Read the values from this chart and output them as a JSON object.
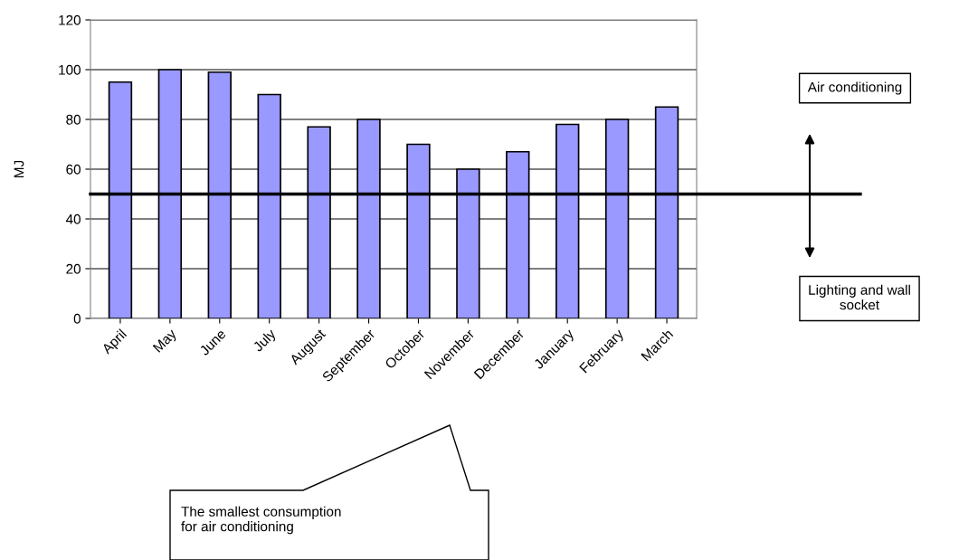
{
  "chart_data": {
    "type": "bar",
    "ylabel": "MJ",
    "categories": [
      "April",
      "May",
      "June",
      "July",
      "August",
      "September",
      "October",
      "November",
      "December",
      "January",
      "February",
      "March"
    ],
    "values": [
      95,
      100,
      99,
      90,
      77,
      80,
      70,
      60,
      67,
      78,
      80,
      85
    ],
    "color": "#9999ff",
    "ylim": [
      0,
      120
    ],
    "yticks": [
      0,
      20,
      40,
      60,
      80,
      100,
      120
    ],
    "grid": "y",
    "ref_lines": [
      {
        "axis": "y",
        "value": 50,
        "color": "#000000",
        "line_style": "solid"
      }
    ],
    "annotations": [
      "Air conditioning",
      "Lighting and wall\nsocket",
      "The smallest consumption\nfor air conditioning"
    ]
  }
}
